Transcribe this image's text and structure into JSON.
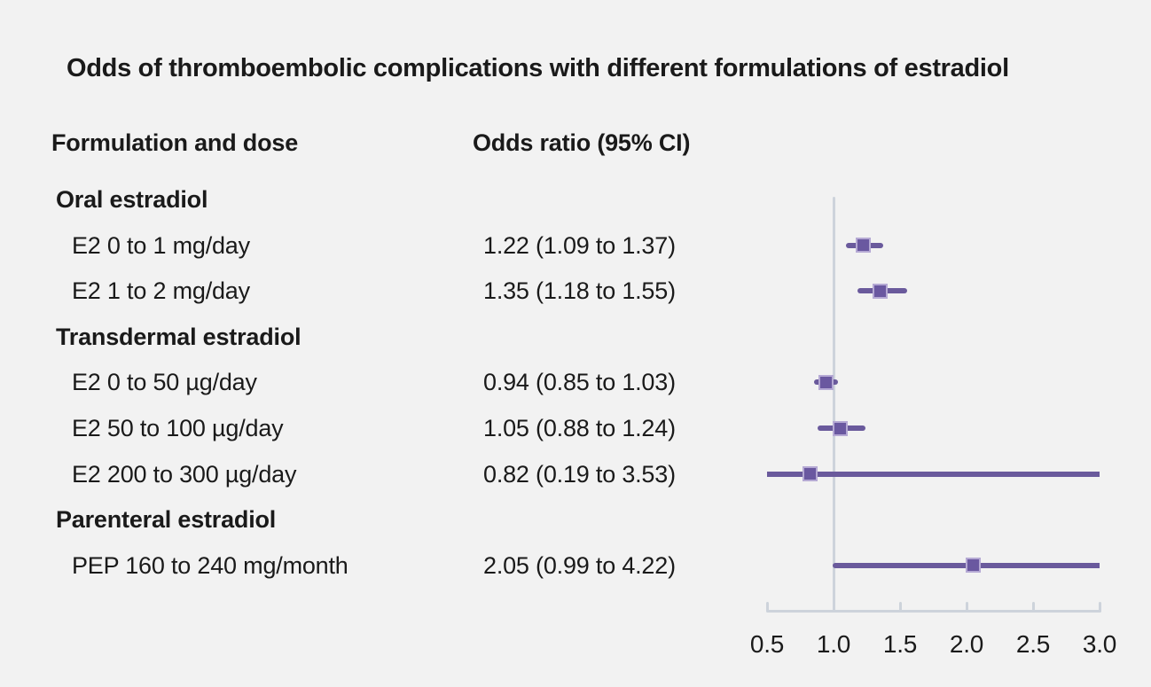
{
  "title": "Odds of thromboembolic complications with different formulations of estradiol",
  "columns": {
    "formulation": "Formulation and dose",
    "odds_ratio": "Odds ratio (95% CI)"
  },
  "colors": {
    "background": "#f2f2f2",
    "text": "#1a1a1a",
    "ci_line": "#6a5a9c",
    "marker_fill": "#6a58a0",
    "marker_edge": "#b5a9d4",
    "axis": "#cdd3db"
  },
  "chart_data": {
    "type": "scatter",
    "variant": "forest-plot",
    "title": "Odds of thromboembolic complications with different formulations of estradiol",
    "xlabel": "",
    "ylabel": "",
    "xlim": [
      0.5,
      3.0
    ],
    "x_tick_labels": [
      "0.5",
      "1.0",
      "1.5",
      "2.0",
      "2.5",
      "3.0"
    ],
    "reference_line_x": 1.0,
    "grid": false,
    "legend": "none",
    "rows": [
      {
        "kind": "group",
        "label": "Oral estradiol"
      },
      {
        "kind": "item",
        "label": "E2 0 to 1 mg/day",
        "or_text": "1.22 (1.09 to 1.37)",
        "est": 1.22,
        "lo": 1.09,
        "hi": 1.37
      },
      {
        "kind": "item",
        "label": "E2 1 to 2 mg/day",
        "or_text": "1.35 (1.18 to 1.55)",
        "est": 1.35,
        "lo": 1.18,
        "hi": 1.55
      },
      {
        "kind": "group",
        "label": "Transdermal estradiol"
      },
      {
        "kind": "item",
        "label": "E2 0 to 50 µg/day",
        "or_text": "0.94 (0.85 to 1.03)",
        "est": 0.94,
        "lo": 0.85,
        "hi": 1.03
      },
      {
        "kind": "item",
        "label": "E2 50 to 100 µg/day",
        "or_text": "1.05 (0.88 to 1.24)",
        "est": 1.05,
        "lo": 0.88,
        "hi": 1.24
      },
      {
        "kind": "item",
        "label": "E2 200 to 300 µg/day",
        "or_text": "0.82 (0.19 to 3.53)",
        "est": 0.82,
        "lo": 0.19,
        "hi": 3.53
      },
      {
        "kind": "group",
        "label": "Parenteral estradiol"
      },
      {
        "kind": "item",
        "label": "PEP 160 to 240 mg/month",
        "or_text": "2.05 (0.99 to 4.22)",
        "est": 2.05,
        "lo": 0.99,
        "hi": 4.22
      }
    ]
  }
}
